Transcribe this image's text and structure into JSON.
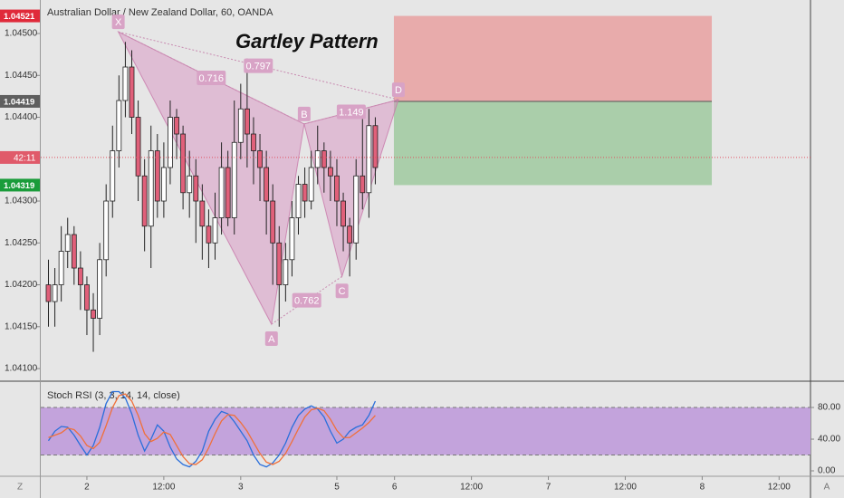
{
  "chart_data": [
    {
      "type": "candlestick",
      "header": "Australian Dollar / New Zealand Dollar, 60, OANDA",
      "title": "Gartley Pattern",
      "x": [
        -6,
        -5,
        -4,
        -3,
        -2,
        -1,
        0,
        1,
        2,
        3,
        4,
        5,
        6,
        7,
        8,
        9,
        10,
        11,
        12,
        13,
        14,
        15,
        16,
        17,
        18,
        19,
        20,
        21,
        22,
        23,
        24,
        25,
        26,
        27,
        28,
        29,
        30,
        31,
        32,
        33,
        34,
        35,
        36,
        37,
        38,
        39,
        40,
        41,
        42,
        43,
        44,
        45
      ],
      "open": [
        1.042,
        1.0418,
        1.042,
        1.0424,
        1.0426,
        1.0422,
        1.042,
        1.0417,
        1.0416,
        1.0423,
        1.043,
        1.0436,
        1.0442,
        1.0446,
        1.044,
        1.0433,
        1.0427,
        1.0436,
        1.043,
        1.0434,
        1.044,
        1.0438,
        1.0431,
        1.0433,
        1.043,
        1.0427,
        1.0425,
        1.0428,
        1.0434,
        1.0428,
        1.0437,
        1.0441,
        1.0438,
        1.0436,
        1.0434,
        1.043,
        1.0425,
        1.042,
        1.0423,
        1.0428,
        1.0432,
        1.043,
        1.0434,
        1.0436,
        1.0434,
        1.0433,
        1.043,
        1.0427,
        1.0425,
        1.0433,
        1.0431,
        1.0439
      ],
      "high": [
        1.0423,
        1.0422,
        1.0427,
        1.0428,
        1.0427,
        1.0424,
        1.0421,
        1.0419,
        1.0425,
        1.0432,
        1.0439,
        1.0445,
        1.0449,
        1.0448,
        1.0442,
        1.0435,
        1.0439,
        1.0438,
        1.0437,
        1.0442,
        1.0441,
        1.0439,
        1.0436,
        1.0435,
        1.0432,
        1.0429,
        1.0431,
        1.0437,
        1.0436,
        1.0442,
        1.0444,
        1.0447,
        1.044,
        1.0438,
        1.0436,
        1.0432,
        1.0427,
        1.0425,
        1.043,
        1.0433,
        1.0434,
        1.0436,
        1.0439,
        1.0437,
        1.0436,
        1.0435,
        1.0431,
        1.0428,
        1.0435,
        1.044,
        1.0441,
        1.044
      ],
      "low": [
        1.0415,
        1.0415,
        1.0418,
        1.0422,
        1.042,
        1.0417,
        1.0414,
        1.0412,
        1.0414,
        1.0421,
        1.0428,
        1.0434,
        1.044,
        1.0438,
        1.043,
        1.0424,
        1.0422,
        1.0428,
        1.0428,
        1.0432,
        1.0435,
        1.0429,
        1.0428,
        1.0425,
        1.0423,
        1.0422,
        1.0423,
        1.0426,
        1.0427,
        1.0426,
        1.0435,
        1.0434,
        1.0432,
        1.043,
        1.0426,
        1.042,
        1.0415,
        1.0418,
        1.0421,
        1.0426,
        1.0428,
        1.0429,
        1.0432,
        1.0431,
        1.043,
        1.0427,
        1.0424,
        1.0421,
        1.0423,
        1.0429,
        1.0428,
        1.0432
      ],
      "close": [
        1.0418,
        1.042,
        1.0424,
        1.0426,
        1.0422,
        1.042,
        1.0417,
        1.0416,
        1.0423,
        1.043,
        1.0436,
        1.0442,
        1.0446,
        1.044,
        1.0433,
        1.0427,
        1.0436,
        1.043,
        1.0434,
        1.044,
        1.0438,
        1.0431,
        1.0433,
        1.043,
        1.0427,
        1.0425,
        1.0428,
        1.0434,
        1.0428,
        1.0437,
        1.0441,
        1.0438,
        1.0436,
        1.0434,
        1.043,
        1.0425,
        1.042,
        1.0423,
        1.0428,
        1.0432,
        1.043,
        1.0434,
        1.0436,
        1.0434,
        1.0433,
        1.043,
        1.0427,
        1.0425,
        1.0433,
        1.0431,
        1.0439,
        1.0434
      ],
      "up_color": "#ffffff",
      "down_color": "#e0607a",
      "xlim": [
        -7.2,
        112.9
      ],
      "ylim": [
        1.04086,
        1.0454
      ],
      "yticks": [
        {
          "value": 1.045,
          "label": "1.04500"
        },
        {
          "value": 1.0445,
          "label": "1.04450"
        },
        {
          "value": 1.044,
          "label": "1.04400"
        },
        {
          "value": 1.043,
          "label": "1.04300"
        },
        {
          "value": 1.0425,
          "label": "1.04250"
        },
        {
          "value": 1.042,
          "label": "1.04200"
        },
        {
          "value": 1.0415,
          "label": "1.04150"
        },
        {
          "value": 1.041,
          "label": "1.04100"
        }
      ],
      "pattern": {
        "points": [
          {
            "label": "X",
            "x": 4.9,
            "y": 1.04502
          },
          {
            "label": "A",
            "x": 28.8,
            "y": 1.04153
          },
          {
            "label": "B",
            "x": 33.9,
            "y": 1.04392
          },
          {
            "label": "C",
            "x": 39.8,
            "y": 1.0421
          },
          {
            "label": "D",
            "x": 48.6,
            "y": 1.04421
          }
        ],
        "ratios": [
          {
            "label": "0.716",
            "between": [
              0,
              2
            ]
          },
          {
            "label": "0.797",
            "between": [
              0,
              4
            ]
          },
          {
            "label": "1.149",
            "between": [
              2,
              4
            ]
          },
          {
            "label": "0.762",
            "between": [
              1,
              3
            ]
          }
        ]
      },
      "position": {
        "stop": 1.04521,
        "entry": 1.04419,
        "target": 1.04319,
        "x_start": 47.9,
        "x_end": 97.5
      },
      "last_price": 1.04352,
      "countdown": "42:11"
    },
    {
      "type": "line",
      "title": "Stoch RSI (3, 3, 14, 14, close)",
      "x": [
        -6,
        -5,
        -4,
        -3,
        -2,
        -1,
        0,
        1,
        2,
        3,
        4,
        5,
        6,
        7,
        8,
        9,
        10,
        11,
        12,
        13,
        14,
        15,
        16,
        17,
        18,
        19,
        20,
        21,
        22,
        23,
        24,
        25,
        26,
        27,
        28,
        29,
        30,
        31,
        32,
        33,
        34,
        35,
        36,
        37,
        38,
        39,
        40,
        41,
        42,
        43,
        44,
        45
      ],
      "series": [
        {
          "name": "K",
          "color": "#2a6fdb",
          "values": [
            38,
            50,
            56,
            55,
            45,
            32,
            20,
            32,
            55,
            85,
            100,
            100,
            92,
            72,
            45,
            25,
            40,
            58,
            50,
            30,
            15,
            8,
            5,
            12,
            25,
            50,
            65,
            75,
            72,
            62,
            50,
            38,
            20,
            8,
            5,
            10,
            20,
            35,
            55,
            70,
            78,
            82,
            78,
            68,
            50,
            35,
            40,
            50,
            55,
            58,
            70,
            88
          ]
        },
        {
          "name": "D",
          "color": "#f0703a",
          "values": [
            42,
            45,
            48,
            54,
            52,
            44,
            32,
            28,
            36,
            57,
            80,
            95,
            97,
            88,
            70,
            47,
            37,
            41,
            49,
            46,
            32,
            18,
            9,
            8,
            14,
            29,
            47,
            63,
            71,
            70,
            61,
            50,
            36,
            22,
            11,
            8,
            12,
            22,
            37,
            53,
            68,
            77,
            79,
            76,
            65,
            51,
            42,
            42,
            48,
            54,
            61,
            70
          ]
        }
      ],
      "band": [
        20,
        80
      ],
      "xlim": [
        -7.2,
        112.9
      ],
      "ylim": [
        -5.7,
        108.6
      ],
      "yticks": [
        {
          "value": 80,
          "label": "80.00"
        },
        {
          "value": 40,
          "label": "40.00"
        },
        {
          "value": 0,
          "label": "0.00"
        }
      ],
      "xticks": [
        {
          "value": 0,
          "label": "2"
        },
        {
          "value": 12,
          "label": "12:00"
        },
        {
          "value": 24,
          "label": "3"
        },
        {
          "value": 39,
          "label": "5"
        },
        {
          "value": 48,
          "label": "6"
        },
        {
          "value": 60,
          "label": "12:00"
        },
        {
          "value": 72,
          "label": "7"
        },
        {
          "value": 84,
          "label": "12:00"
        },
        {
          "value": 96,
          "label": "8"
        },
        {
          "value": 108,
          "label": "12:00"
        }
      ],
      "buttons": [
        "Z",
        "A"
      ]
    }
  ]
}
